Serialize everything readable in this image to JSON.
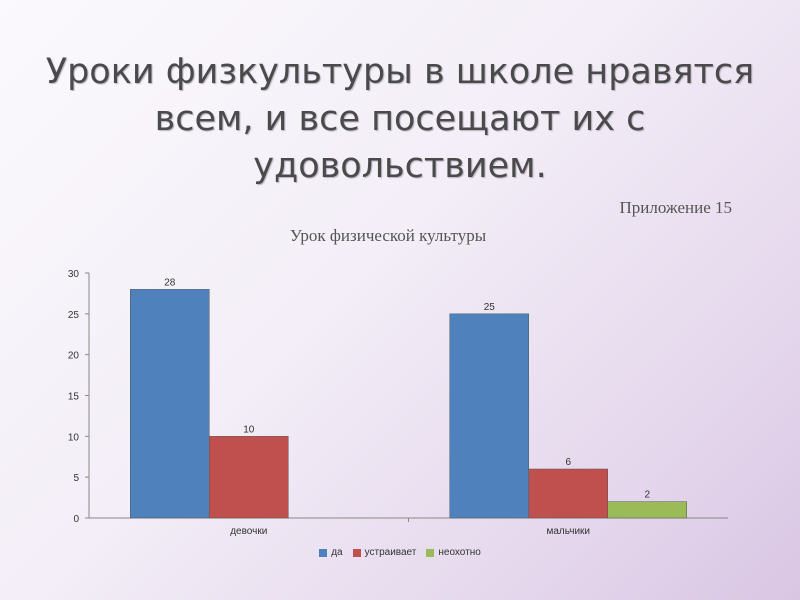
{
  "slide": {
    "title": "Уроки физкультуры в школе нравятся всем, и все посещают их с удовольствием.",
    "appendix": "Приложение 15"
  },
  "chart_data": {
    "type": "bar",
    "title": "Урок физической культуры",
    "categories": [
      "девочки",
      "мальчики"
    ],
    "series": [
      {
        "name": "да",
        "color": "#4f81bd",
        "values": [
          28,
          25
        ]
      },
      {
        "name": "устраивает",
        "color": "#c0504d",
        "values": [
          10,
          6
        ]
      },
      {
        "name": "неохотно",
        "color": "#9bbb59",
        "values": [
          null,
          2
        ]
      }
    ],
    "ylim": [
      0,
      30
    ],
    "yticks": [
      0,
      5,
      10,
      15,
      20,
      25,
      30
    ],
    "grid": false,
    "legend": "bottom"
  }
}
